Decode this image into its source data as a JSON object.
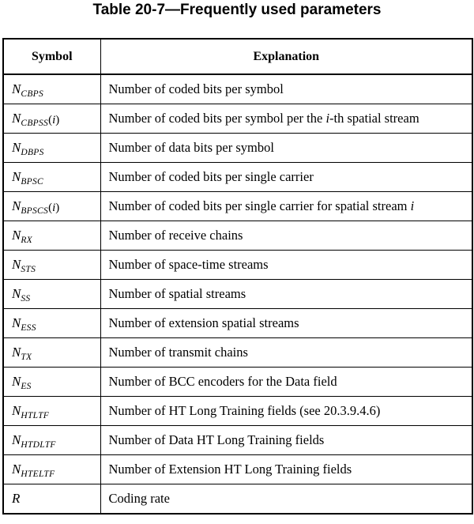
{
  "title": "Table 20-7—Frequently used parameters",
  "headers": {
    "symbol": "Symbol",
    "explanation": "Explanation"
  },
  "rows": [
    {
      "base": "N",
      "sub": "CBPS",
      "arg": "",
      "explanation": "Number of coded bits per symbol"
    },
    {
      "base": "N",
      "sub": "CBPSS",
      "arg": "i",
      "explanation": "Number of coded bits per symbol per the i-th spatial stream"
    },
    {
      "base": "N",
      "sub": "DBPS",
      "arg": "",
      "explanation": "Number of data bits per symbol"
    },
    {
      "base": "N",
      "sub": "BPSC",
      "arg": "",
      "explanation": "Number of coded bits per single carrier"
    },
    {
      "base": "N",
      "sub": "BPSCS",
      "arg": "i",
      "explanation": "Number of coded bits per single carrier for spatial stream i"
    },
    {
      "base": "N",
      "sub": "RX",
      "arg": "",
      "explanation": "Number of receive chains"
    },
    {
      "base": "N",
      "sub": "STS",
      "arg": "",
      "explanation": "Number of space-time streams"
    },
    {
      "base": "N",
      "sub": "SS",
      "arg": "",
      "explanation": "Number of spatial streams"
    },
    {
      "base": "N",
      "sub": "ESS",
      "arg": "",
      "explanation": "Number of extension spatial streams"
    },
    {
      "base": "N",
      "sub": "TX",
      "arg": "",
      "explanation": "Number of transmit chains"
    },
    {
      "base": "N",
      "sub": "ES",
      "arg": "",
      "explanation": "Number of BCC encoders for the Data field"
    },
    {
      "base": "N",
      "sub": "HTLTF",
      "arg": "",
      "explanation": "Number of HT Long Training fields (see 20.3.9.4.6)"
    },
    {
      "base": "N",
      "sub": "HTDLTF",
      "arg": "",
      "explanation": "Number of Data HT Long Training fields"
    },
    {
      "base": "N",
      "sub": "HTELTF",
      "arg": "",
      "explanation": "Number of Extension HT Long Training fields"
    },
    {
      "base": "R",
      "sub": "",
      "arg": "",
      "explanation": "Coding rate"
    }
  ]
}
